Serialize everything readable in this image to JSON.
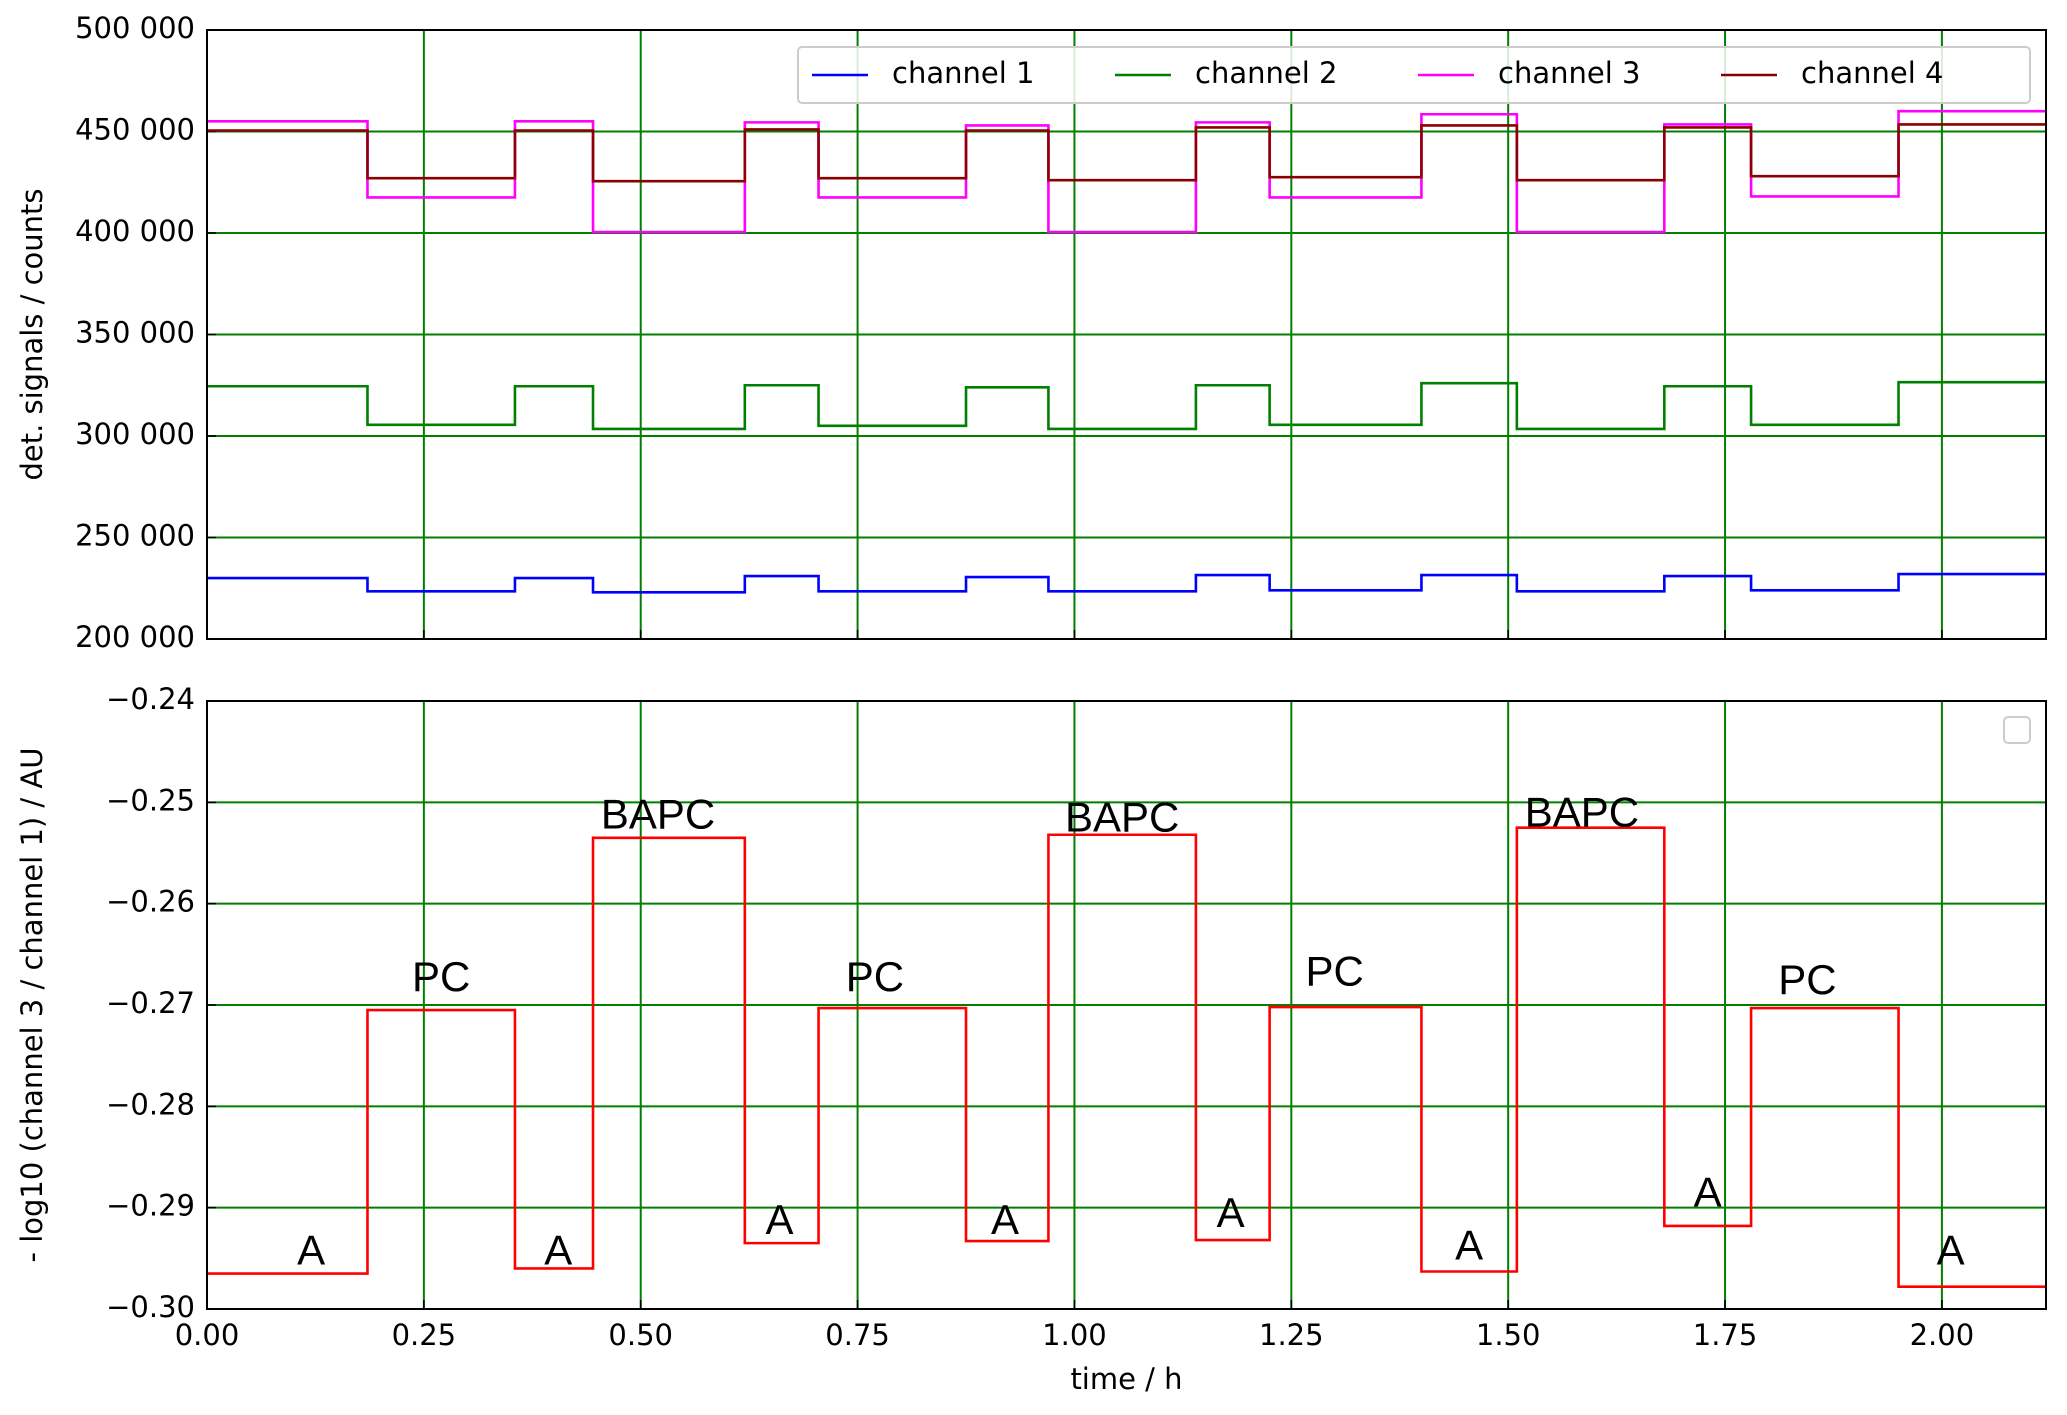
{
  "chart_data": [
    {
      "type": "line",
      "ylabel": "det. signals / counts",
      "x": [
        0,
        0.185,
        0.185,
        0.355,
        0.355,
        0.445,
        0.445,
        0.62,
        0.62,
        0.705,
        0.705,
        0.875,
        0.875,
        0.97,
        0.97,
        1.14,
        1.14,
        1.225,
        1.225,
        1.4,
        1.4,
        1.51,
        1.51,
        1.68,
        1.68,
        1.78,
        1.78,
        1.95,
        1.95,
        2.12
      ],
      "series": [
        {
          "name": "channel 1",
          "color": "#0000ff",
          "values": [
            230000,
            230000,
            223500,
            223500,
            230000,
            230000,
            223000,
            223000,
            231000,
            231000,
            223500,
            223500,
            230500,
            230500,
            223500,
            223500,
            231500,
            231500,
            224000,
            224000,
            231500,
            231500,
            223500,
            223500,
            231000,
            231000,
            224000,
            224000,
            232000,
            232000
          ]
        },
        {
          "name": "channel 2",
          "color": "#007f00",
          "values": [
            324500,
            324500,
            305500,
            305500,
            324500,
            324500,
            303500,
            303500,
            325000,
            325000,
            305000,
            305000,
            324000,
            324000,
            303500,
            303500,
            325000,
            325000,
            305500,
            305500,
            326000,
            326000,
            303500,
            303500,
            324500,
            324500,
            305500,
            305500,
            326500,
            326500
          ]
        },
        {
          "name": "channel 3",
          "color": "#ff00ff",
          "values": [
            455000,
            455000,
            417500,
            417500,
            455000,
            455000,
            400500,
            400500,
            454500,
            454500,
            417500,
            417500,
            453000,
            453000,
            400500,
            400500,
            454500,
            454500,
            417500,
            417500,
            458500,
            458500,
            400500,
            400500,
            453500,
            453500,
            418000,
            418000,
            460000,
            460000
          ]
        },
        {
          "name": "channel 4",
          "color": "#8b0000",
          "values": [
            450500,
            450500,
            427000,
            427000,
            450500,
            450500,
            425500,
            425500,
            451000,
            451000,
            427000,
            427000,
            450500,
            450500,
            426000,
            426000,
            452000,
            452000,
            427500,
            427500,
            453000,
            453000,
            426000,
            426000,
            452000,
            452000,
            428000,
            428000,
            453500,
            453500
          ]
        }
      ],
      "xlim": [
        0,
        2.12
      ],
      "xticks": [
        0,
        0.25,
        0.5,
        0.75,
        1,
        1.25,
        1.5,
        1.75,
        2
      ],
      "ylim": [
        200000,
        500000
      ],
      "yticks": [
        {
          "value": 200000,
          "label": "200 000"
        },
        {
          "value": 250000,
          "label": "250 000"
        },
        {
          "value": 300000,
          "label": "300 000"
        },
        {
          "value": 350000,
          "label": "350 000"
        },
        {
          "value": 400000,
          "label": "400 000"
        },
        {
          "value": 450000,
          "label": "450 000"
        },
        {
          "value": 500000,
          "label": "500 000"
        }
      ],
      "grid": true,
      "grid_color": "#007f00",
      "legend": "upper right"
    },
    {
      "type": "line",
      "ylabel": "- log10 (channel 3 / channel 1)  / AU",
      "xlabel": "time / h",
      "x": [
        0,
        0.185,
        0.185,
        0.355,
        0.355,
        0.445,
        0.445,
        0.62,
        0.62,
        0.705,
        0.705,
        0.875,
        0.875,
        0.97,
        0.97,
        1.14,
        1.14,
        1.225,
        1.225,
        1.4,
        1.4,
        1.51,
        1.51,
        1.68,
        1.68,
        1.78,
        1.78,
        1.95,
        1.95,
        2.12
      ],
      "series": [
        {
          "color": "#ff0000",
          "values": [
            -0.2965,
            -0.2965,
            -0.2705,
            -0.2705,
            -0.296,
            -0.296,
            -0.2535,
            -0.2535,
            -0.2935,
            -0.2935,
            -0.2703,
            -0.2703,
            -0.2933,
            -0.2933,
            -0.2532,
            -0.2532,
            -0.2932,
            -0.2932,
            -0.2702,
            -0.2702,
            -0.2963,
            -0.2963,
            -0.2525,
            -0.2525,
            -0.2918,
            -0.2918,
            -0.2703,
            -0.2703,
            -0.2978,
            -0.2978
          ]
        }
      ],
      "xlim": [
        0,
        2.12
      ],
      "xticks": [
        {
          "value": 0,
          "label": "0.00"
        },
        {
          "value": 0.25,
          "label": "0.25"
        },
        {
          "value": 0.5,
          "label": "0.50"
        },
        {
          "value": 0.75,
          "label": "0.75"
        },
        {
          "value": 1,
          "label": "1.00"
        },
        {
          "value": 1.25,
          "label": "1.25"
        },
        {
          "value": 1.5,
          "label": "1.50"
        },
        {
          "value": 1.75,
          "label": "1.75"
        },
        {
          "value": 2,
          "label": "2.00"
        }
      ],
      "ylim": [
        -0.3,
        -0.24
      ],
      "yticks": [
        {
          "value": -0.3,
          "label": "−0.30"
        },
        {
          "value": -0.29,
          "label": "−0.29"
        },
        {
          "value": -0.28,
          "label": "−0.28"
        },
        {
          "value": -0.27,
          "label": "−0.27"
        },
        {
          "value": -0.26,
          "label": "−0.26"
        },
        {
          "value": -0.25,
          "label": "−0.25"
        },
        {
          "value": -0.24,
          "label": "−0.24"
        }
      ],
      "grid": true,
      "grid_color": "#007f00",
      "annotations": [
        {
          "text": "A",
          "x": 0.12,
          "y": -0.2945
        },
        {
          "text": "PC",
          "x": 0.27,
          "y": -0.2675
        },
        {
          "text": "A",
          "x": 0.405,
          "y": -0.2945
        },
        {
          "text": "BAPC",
          "x": 0.52,
          "y": -0.2515
        },
        {
          "text": "A",
          "x": 0.66,
          "y": -0.2915
        },
        {
          "text": "PC",
          "x": 0.77,
          "y": -0.2675
        },
        {
          "text": "A",
          "x": 0.92,
          "y": -0.2915
        },
        {
          "text": "BAPC",
          "x": 1.055,
          "y": -0.2518
        },
        {
          "text": "A",
          "x": 1.18,
          "y": -0.2908
        },
        {
          "text": "PC",
          "x": 1.3,
          "y": -0.267
        },
        {
          "text": "A",
          "x": 1.455,
          "y": -0.294
        },
        {
          "text": "BAPC",
          "x": 1.585,
          "y": -0.2513
        },
        {
          "text": "A",
          "x": 1.73,
          "y": -0.2888
        },
        {
          "text": "PC",
          "x": 1.845,
          "y": -0.2678
        },
        {
          "text": "A",
          "x": 2.01,
          "y": -0.2945
        }
      ]
    }
  ]
}
